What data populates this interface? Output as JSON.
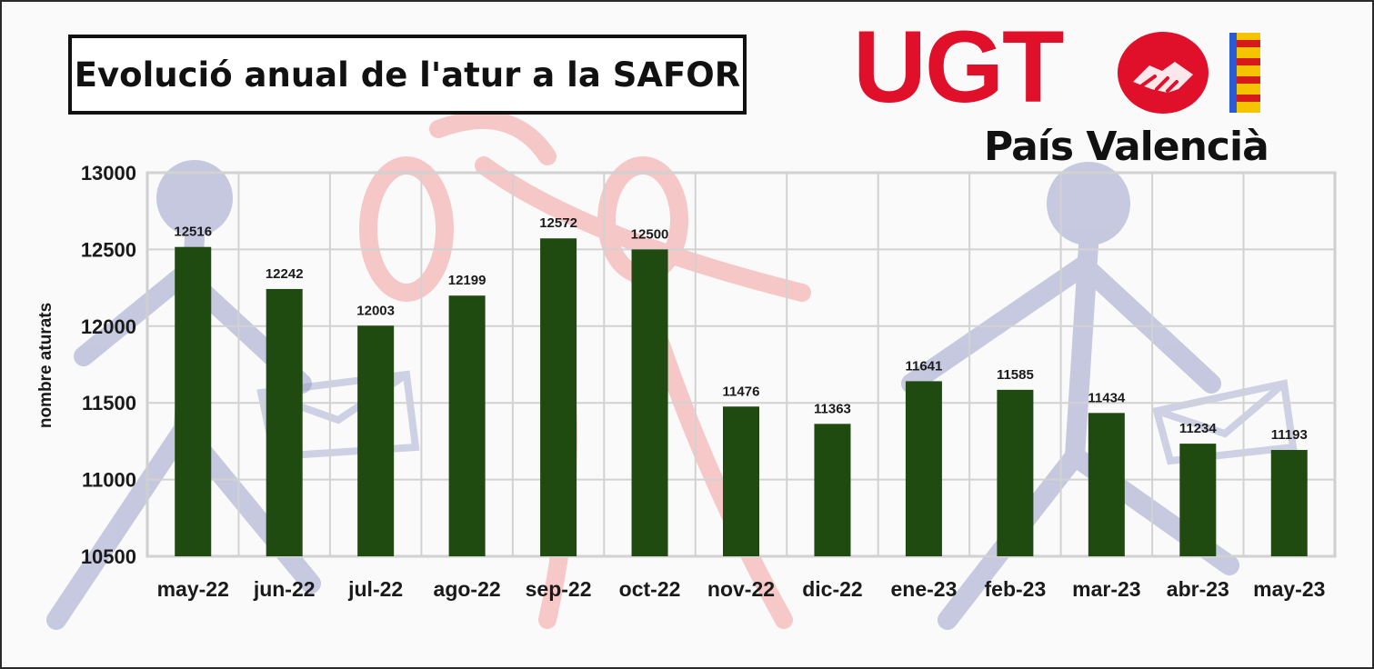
{
  "title": "Evolució anual de l'atur a la SAFOR",
  "logo": {
    "brand": "UGT",
    "subtitle": "País Valencià",
    "brand_color": "#e0102a",
    "icon": "handshake-icon"
  },
  "chart_data": {
    "type": "bar",
    "categories": [
      "may-22",
      "jun-22",
      "jul-22",
      "ago-22",
      "sep-22",
      "oct-22",
      "nov-22",
      "dic-22",
      "ene-23",
      "feb-23",
      "mar-23",
      "abr-23",
      "may-23"
    ],
    "values": [
      12516,
      12242,
      12003,
      12199,
      12572,
      12500,
      11476,
      11363,
      11641,
      11585,
      11434,
      11234,
      11193
    ],
    "data_labels": [
      "12516",
      "12242",
      "12003",
      "12199",
      "12572",
      "12500",
      "11476",
      "11363",
      "11641",
      "11585",
      "11434",
      "11234",
      "11193"
    ],
    "ylabel": "nombre aturats",
    "xlabel": "",
    "ylim": [
      10500,
      13000
    ],
    "yticks": [
      "10500",
      "11000",
      "11500",
      "12000",
      "12500",
      "13000"
    ],
    "grid": true,
    "bar_color": "#1f4a10",
    "legend": "none"
  }
}
